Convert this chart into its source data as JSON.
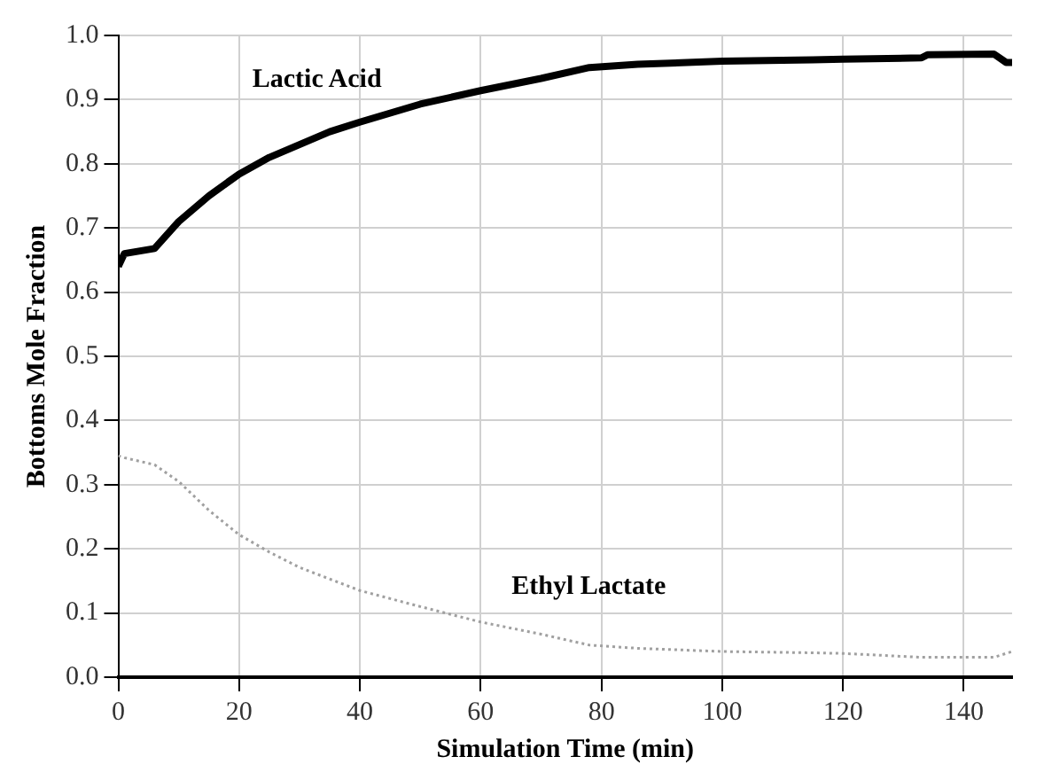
{
  "chart_data": {
    "type": "line",
    "xlabel": "Simulation Time (min)",
    "ylabel": "Bottoms Mole Fraction",
    "xlim": [
      0,
      148
    ],
    "xticks": [
      0,
      20,
      40,
      60,
      80,
      100,
      120,
      140
    ],
    "ylim": [
      0,
      1
    ],
    "yticks": [
      {
        "value": 0,
        "label": "0.0"
      },
      0.1,
      0.2,
      0.3,
      0.4,
      0.5,
      0.6,
      0.7,
      0.8,
      0.9,
      {
        "value": 1,
        "label": "1.0"
      }
    ],
    "grid": true,
    "legend": false,
    "marker": "none",
    "series": [
      {
        "name": "Lactic Acid",
        "color": "#000000",
        "line_style": "solid",
        "x": [
          0,
          1,
          6,
          10,
          15,
          20,
          25,
          30,
          35,
          40,
          50,
          60,
          70,
          78,
          86,
          100,
          115,
          120,
          133,
          134,
          145,
          147,
          148
        ],
        "values": [
          0.64,
          0.66,
          0.668,
          0.71,
          0.75,
          0.784,
          0.81,
          0.83,
          0.85,
          0.865,
          0.893,
          0.914,
          0.933,
          0.95,
          0.955,
          0.96,
          0.962,
          0.963,
          0.965,
          0.97,
          0.971,
          0.958,
          0.958
        ]
      },
      {
        "name": "Ethyl Lactate",
        "color": "#a0a0a0",
        "line_style": "dotted",
        "x": [
          0,
          1,
          6,
          10,
          15,
          20,
          25,
          30,
          40,
          50,
          60,
          70,
          78,
          86,
          100,
          115,
          120,
          133,
          145,
          148
        ],
        "values": [
          0.345,
          0.342,
          0.331,
          0.305,
          0.26,
          0.222,
          0.195,
          0.171,
          0.135,
          0.11,
          0.086,
          0.067,
          0.05,
          0.045,
          0.04,
          0.038,
          0.037,
          0.031,
          0.031,
          0.04
        ]
      }
    ]
  }
}
